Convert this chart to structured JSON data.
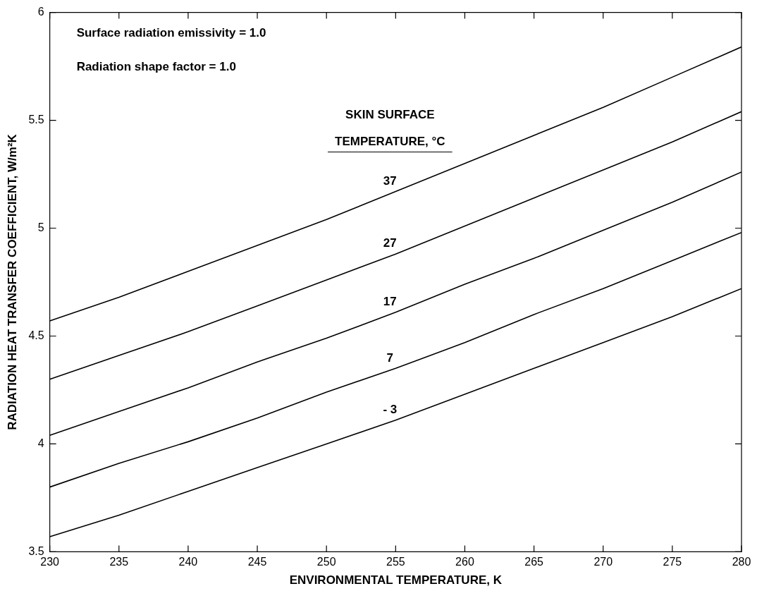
{
  "chart_data": {
    "type": "line",
    "xlabel": "ENVIRONMENTAL TEMPERATURE, K",
    "ylabel": "RADIATION HEAT TRANSFER COEFFICIENT, W/m²K",
    "legend_title": "SKIN SURFACE TEMPERATURE, °C",
    "annotations": [
      "Surface radiation emissivity = 1.0",
      "Radiation shape factor = 1.0"
    ],
    "x": [
      230,
      235,
      240,
      245,
      250,
      255,
      260,
      265,
      270,
      275,
      280
    ],
    "series": [
      {
        "name": "37",
        "color": "#000000",
        "values": [
          4.57,
          4.68,
          4.8,
          4.92,
          5.04,
          5.17,
          5.3,
          5.43,
          5.56,
          5.7,
          5.84
        ]
      },
      {
        "name": "27",
        "color": "#000000",
        "values": [
          4.3,
          4.41,
          4.52,
          4.64,
          4.76,
          4.88,
          5.01,
          5.14,
          5.27,
          5.4,
          5.54
        ]
      },
      {
        "name": "17",
        "color": "#000000",
        "values": [
          4.04,
          4.15,
          4.26,
          4.38,
          4.49,
          4.61,
          4.74,
          4.86,
          4.99,
          5.12,
          5.26
        ]
      },
      {
        "name": "7",
        "color": "#000000",
        "values": [
          3.8,
          3.91,
          4.01,
          4.12,
          4.24,
          4.35,
          4.47,
          4.6,
          4.72,
          4.85,
          4.98
        ]
      },
      {
        "name": "- 3",
        "color": "#000000",
        "values": [
          3.57,
          3.67,
          3.78,
          3.89,
          4.0,
          4.11,
          4.23,
          4.35,
          4.47,
          4.59,
          4.72
        ]
      }
    ],
    "xlim": [
      230,
      280
    ],
    "ylim": [
      3.5,
      6
    ],
    "xticks": [
      230,
      235,
      240,
      245,
      250,
      255,
      260,
      265,
      270,
      275,
      280
    ],
    "yticks": [
      3.5,
      4,
      4.5,
      5,
      5.5,
      6
    ],
    "grid": false,
    "legend": false,
    "marker": "none",
    "line_style": "solid"
  }
}
